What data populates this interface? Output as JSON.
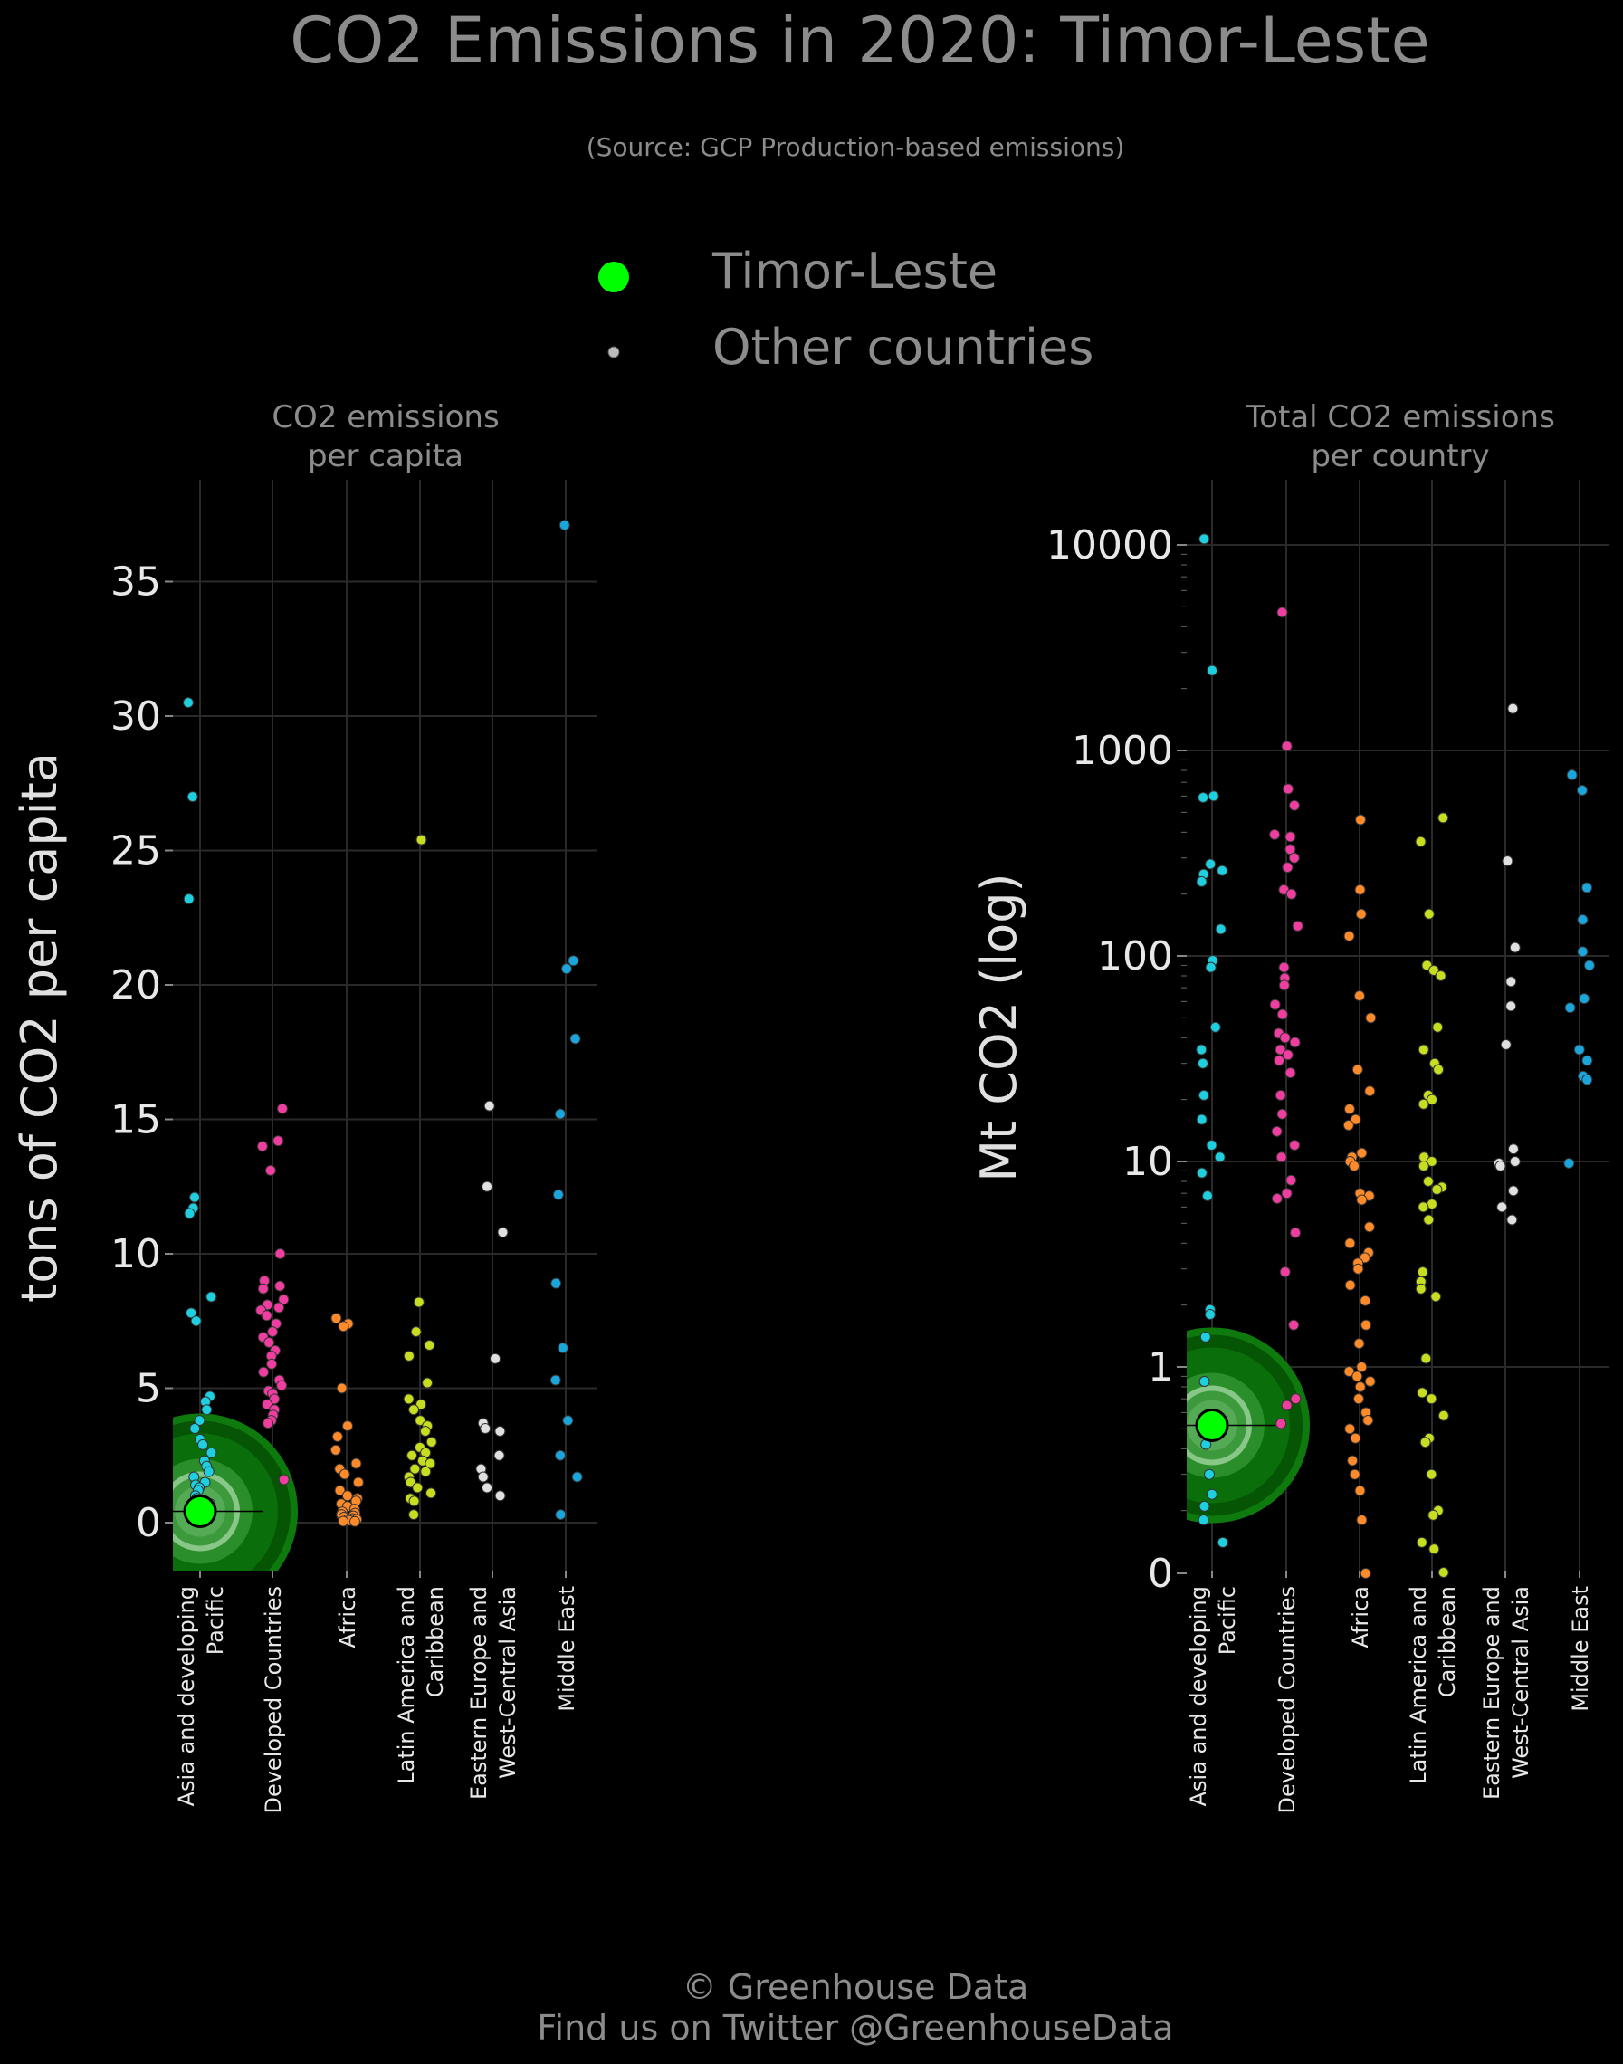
{
  "title": "CO2 Emissions in 2020: Timor-Leste",
  "subtitle": "(Source: GCP Production-based emissions)",
  "legend": {
    "highlight_label": "Timor-Leste",
    "other_label": "Other countries",
    "highlight_color": "#00ff00",
    "other_color": "#bbbbbb"
  },
  "footer": {
    "line1": "© Greenhouse Data",
    "line2": "Find us on Twitter @GreenhouseData"
  },
  "region_colors": [
    "#1ecfe0",
    "#f03ea0",
    "#ff8a2a",
    "#c6dd20",
    "#e0e0e0",
    "#1aa6dc"
  ],
  "chart_data": [
    {
      "type": "scatter",
      "panel_title_line1": "CO2 emissions",
      "panel_title_line2": "per capita",
      "ylabel": "tons of CO2 per capita",
      "scale": "linear",
      "ylim": [
        -1.8,
        39
      ],
      "yticks": [
        0,
        5,
        10,
        15,
        20,
        25,
        30,
        35
      ],
      "categories": [
        [
          "Asia and developing",
          "Pacific"
        ],
        [
          "Developed Countries"
        ],
        [
          "Africa"
        ],
        [
          "Latin America and",
          "Caribbean"
        ],
        [
          "Eastern Europe and",
          "West-Central Asia"
        ],
        [
          "Middle East"
        ]
      ],
      "highlight": {
        "category": 0,
        "value": 0.42
      },
      "series": [
        {
          "values": [
            30.5,
            27.0,
            23.2,
            12.1,
            11.7,
            11.5,
            8.4,
            7.8,
            7.5,
            4.7,
            4.5,
            4.2,
            3.8,
            3.5,
            3.1,
            2.9,
            2.6,
            2.3,
            2.1,
            1.9,
            1.7,
            1.5,
            1.4,
            1.3,
            1.2,
            1.0,
            0.9,
            0.7,
            0.6,
            0.5,
            0.4,
            0.3,
            0.2
          ]
        },
        {
          "values": [
            15.4,
            14.2,
            14.0,
            13.1,
            10.0,
            9.0,
            8.8,
            8.7,
            8.3,
            8.1,
            8.0,
            7.9,
            7.7,
            7.4,
            7.1,
            6.9,
            6.7,
            6.4,
            6.2,
            5.9,
            5.6,
            5.3,
            5.1,
            4.9,
            4.8,
            4.6,
            4.4,
            4.2,
            4.0,
            3.8,
            3.7,
            1.6
          ]
        },
        {
          "values": [
            7.6,
            7.4,
            7.3,
            5.0,
            3.6,
            3.2,
            2.7,
            2.2,
            2.0,
            1.8,
            1.5,
            1.2,
            1.0,
            0.9,
            0.8,
            0.7,
            0.6,
            0.5,
            0.4,
            0.35,
            0.3,
            0.25,
            0.2,
            0.15,
            0.12,
            0.1,
            0.08,
            0.05,
            0.04
          ]
        },
        {
          "values": [
            25.4,
            8.2,
            7.1,
            6.6,
            6.2,
            5.2,
            4.6,
            4.4,
            4.2,
            3.8,
            3.6,
            3.4,
            3.0,
            2.8,
            2.6,
            2.5,
            2.3,
            2.2,
            2.0,
            1.9,
            1.7,
            1.5,
            1.3,
            1.1,
            0.9,
            0.8,
            0.3
          ]
        },
        {
          "values": [
            15.5,
            12.5,
            10.8,
            6.1,
            3.7,
            3.5,
            3.4,
            2.5,
            2.0,
            1.7,
            1.3,
            1.0
          ]
        },
        {
          "values": [
            37.1,
            20.9,
            20.6,
            18.0,
            15.2,
            12.2,
            8.9,
            6.5,
            5.3,
            3.8,
            2.5,
            1.7,
            0.3
          ]
        }
      ]
    },
    {
      "type": "scatter",
      "panel_title_line1": "Total CO2 emissions",
      "panel_title_line2": "per country",
      "ylabel": "Mt CO2 (log)",
      "scale": "log",
      "ylim_label_bottom": "0",
      "yticks": [
        1,
        10,
        100,
        1000,
        10000
      ],
      "ytick_labels": [
        "0",
        "1",
        "10",
        "100",
        "1000",
        "10000"
      ],
      "categories": [
        [
          "Asia and developing",
          "Pacific"
        ],
        [
          "Developed Countries"
        ],
        [
          "Africa"
        ],
        [
          "Latin America and",
          "Caribbean"
        ],
        [
          "Eastern Europe and",
          "West-Central Asia"
        ],
        [
          "Middle East"
        ]
      ],
      "highlight": {
        "category": 0,
        "value": 0.52
      },
      "series": [
        {
          "values": [
            10700,
            2450,
            600,
            590,
            280,
            260,
            250,
            230,
            135,
            95,
            88,
            45,
            35,
            30,
            21,
            16,
            12,
            10.5,
            8.8,
            6.8,
            1.9,
            1.8,
            1.4,
            0.85,
            0.5,
            0.42,
            0.3,
            0.24,
            0.21,
            0.18,
            0.14
          ]
        },
        {
          "values": [
            4700,
            1050,
            650,
            540,
            390,
            380,
            330,
            300,
            270,
            210,
            200,
            140,
            88,
            78,
            72,
            58,
            52,
            42,
            40,
            38,
            35,
            33,
            31,
            27,
            21,
            17,
            14,
            12,
            10.5,
            8.1,
            7.0,
            6.6,
            4.5,
            2.9,
            1.6,
            0.7,
            0.65,
            0.53
          ]
        },
        {
          "values": [
            460,
            210,
            160,
            125,
            64,
            50,
            28,
            22,
            18,
            16,
            15,
            11,
            10.5,
            10,
            9.5,
            7,
            6.8,
            6.5,
            4.8,
            4.0,
            3.6,
            3.4,
            3.2,
            3.0,
            2.5,
            2.1,
            1.6,
            1.3,
            1.0,
            0.95,
            0.9,
            0.85,
            0.8,
            0.7,
            0.6,
            0.55,
            0.5,
            0.45,
            0.35,
            0.3,
            0.25,
            0.18,
            0.06
          ]
        },
        {
          "values": [
            470,
            360,
            160,
            90,
            85,
            80,
            45,
            35,
            30,
            28,
            21,
            20,
            19,
            10.5,
            10,
            9.5,
            8,
            7.5,
            7.3,
            6.2,
            6,
            5.2,
            2.9,
            2.6,
            2.4,
            2.2,
            1.1,
            0.75,
            0.7,
            0.58,
            0.45,
            0.43,
            0.3,
            0.2,
            0.19,
            0.14,
            0.13,
            0.1
          ]
        },
        {
          "values": [
            1600,
            290,
            110,
            75,
            57,
            37,
            11.5,
            10,
            9.8,
            9.5,
            7.2,
            6.0,
            5.2
          ]
        },
        {
          "values": [
            760,
            640,
            215,
            150,
            105,
            90,
            62,
            56,
            35,
            31,
            26,
            25,
            9.8
          ]
        }
      ]
    }
  ]
}
